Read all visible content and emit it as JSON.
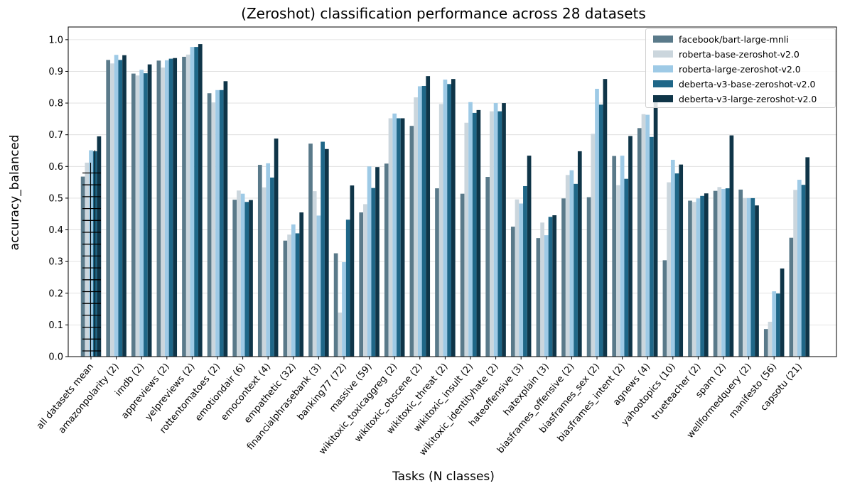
{
  "chart_data": {
    "type": "bar",
    "title": "(Zeroshot) classification performance across 28 datasets",
    "xlabel": "Tasks (N classes)",
    "ylabel": "accuracy_balanced",
    "ylim": [
      0,
      1.04
    ],
    "yticks": [
      "0.0",
      "0.1",
      "0.2",
      "0.3",
      "0.4",
      "0.5",
      "0.6",
      "0.7",
      "0.8",
      "0.9",
      "1.0"
    ],
    "grid": "horizontal",
    "legend_position": "top-right",
    "colors": [
      "#5a7a8a",
      "#cbd6dd",
      "#9ecae6",
      "#1f6788",
      "#0f3548"
    ],
    "categories": [
      "all datasets mean",
      "amazonpolarity (2)",
      "imdb (2)",
      "appreviews (2)",
      "yelpreviews (2)",
      "rottentomatoes (2)",
      "emotiondair (6)",
      "emocontext (4)",
      "empathetic (32)",
      "financialphrasebank (3)",
      "banking77 (72)",
      "massive (59)",
      "wikitoxic_toxicaggreg (2)",
      "wikitoxic_obscene (2)",
      "wikitoxic_threat (2)",
      "wikitoxic_insult (2)",
      "wikitoxic_identityhate (2)",
      "hateoffensive (3)",
      "hatexplain (3)",
      "biasframes_offensive (2)",
      "biasframes_sex (2)",
      "biasframes_intent (2)",
      "agnews (4)",
      "yahootopics (10)",
      "trueteacher (2)",
      "spam (2)",
      "wellformedquery (2)",
      "manifesto (56)",
      "capsotu (21)"
    ],
    "series": [
      {
        "name": "facebook/bart-large-mnli",
        "values": [
          0.568,
          0.936,
          0.893,
          0.934,
          0.946,
          0.831,
          0.495,
          0.605,
          0.366,
          0.672,
          0.326,
          0.455,
          0.609,
          0.728,
          0.531,
          0.514,
          0.567,
          0.41,
          0.374,
          0.499,
          0.503,
          0.633,
          0.721,
          0.304,
          0.492,
          0.523,
          0.527,
          0.087,
          0.375
        ]
      },
      {
        "name": "roberta-base-zeroshot-v2.0",
        "values": [
          0.612,
          0.925,
          0.887,
          0.912,
          0.953,
          0.802,
          0.524,
          0.534,
          0.385,
          0.522,
          0.139,
          0.481,
          0.752,
          0.818,
          0.797,
          0.738,
          0.774,
          0.496,
          0.423,
          0.573,
          0.703,
          0.541,
          0.765,
          0.55,
          0.488,
          0.535,
          0.5,
          0.11,
          0.526
        ]
      },
      {
        "name": "roberta-large-zeroshot-v2.0",
        "values": [
          0.651,
          0.952,
          0.905,
          0.935,
          0.977,
          0.841,
          0.514,
          0.61,
          0.417,
          0.445,
          0.298,
          0.6,
          0.767,
          0.853,
          0.874,
          0.803,
          0.8,
          0.483,
          0.383,
          0.588,
          0.845,
          0.634,
          0.763,
          0.621,
          0.499,
          0.529,
          0.5,
          0.206,
          0.558
        ]
      },
      {
        "name": "deberta-v3-base-zeroshot-v2.0",
        "values": [
          0.648,
          0.936,
          0.894,
          0.94,
          0.977,
          0.841,
          0.488,
          0.565,
          0.389,
          0.678,
          0.432,
          0.532,
          0.752,
          0.854,
          0.86,
          0.769,
          0.774,
          0.538,
          0.441,
          0.545,
          0.795,
          0.561,
          0.693,
          0.578,
          0.507,
          0.531,
          0.5,
          0.199,
          0.542
        ]
      },
      {
        "name": "deberta-v3-large-zeroshot-v2.0",
        "values": [
          0.695,
          0.951,
          0.922,
          0.942,
          0.986,
          0.869,
          0.494,
          0.688,
          0.455,
          0.655,
          0.54,
          0.598,
          0.752,
          0.885,
          0.876,
          0.778,
          0.8,
          0.634,
          0.446,
          0.648,
          0.876,
          0.696,
          0.81,
          0.606,
          0.515,
          0.698,
          0.477,
          0.278,
          0.629
        ]
      }
    ]
  }
}
